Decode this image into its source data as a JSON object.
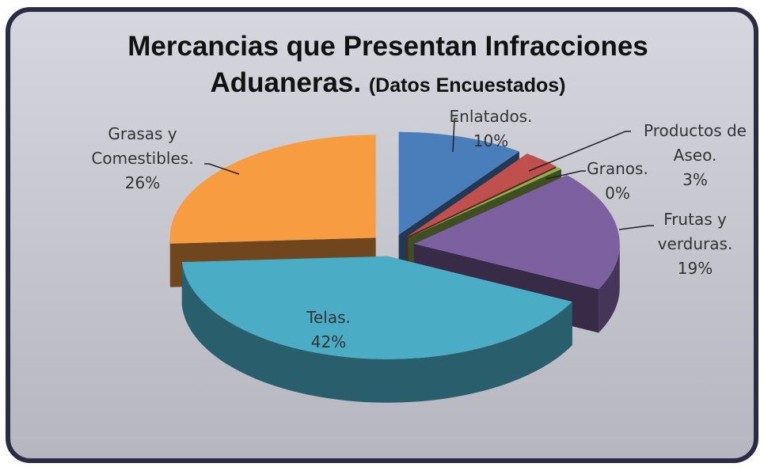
{
  "chart_data": {
    "type": "pie3d",
    "title": "Mercancias que Presentan Infracciones Aduaneras.",
    "subtitle": "(Datos Encuestados)",
    "categories": [
      "Enlatados.",
      "Productos de Aseo.",
      "Granos.",
      "Frutas y verduras.",
      "Telas.",
      "Grasas y Comestibles."
    ],
    "values": [
      10,
      3,
      0.4,
      19,
      42,
      26
    ],
    "value_labels": [
      "10%",
      "3%",
      "0%",
      "19%",
      "42%",
      "26%"
    ],
    "colors": [
      "#4a7ebb",
      "#c0504d",
      "#8fb04a",
      "#7d60a0",
      "#4bacc6",
      "#f79c40"
    ]
  }
}
